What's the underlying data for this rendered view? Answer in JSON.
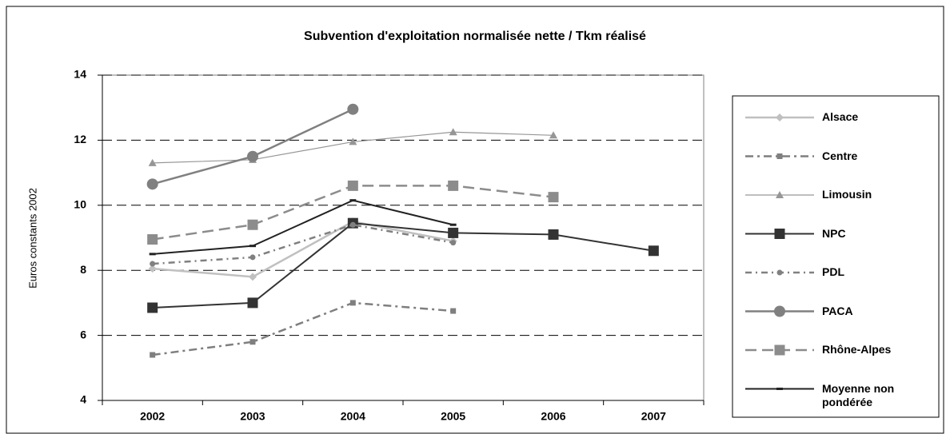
{
  "chart_data": {
    "type": "line",
    "title": "Subvention d'exploitation normalisée nette / Tkm réalisé",
    "y_label": "Euros constants 2002",
    "categories": [
      "2002",
      "2003",
      "2004",
      "2005",
      "2006",
      "2007"
    ],
    "ylim": [
      4,
      14
    ],
    "yticks": [
      4,
      6,
      8,
      10,
      12,
      14
    ],
    "grid": true,
    "series": [
      {
        "name": "Alsace",
        "color": "#c0c0c0",
        "marker": "diamond",
        "dash": "none",
        "width": 2.5,
        "values": [
          8.05,
          7.8,
          9.5,
          8.9,
          null,
          null
        ]
      },
      {
        "name": "Centre",
        "color": "#7f7f7f",
        "marker": "small-square",
        "dash": "10,5,3,5",
        "width": 2.5,
        "values": [
          5.4,
          5.8,
          7.0,
          6.75,
          null,
          null
        ]
      },
      {
        "name": "Limousin",
        "color": "#969696",
        "marker": "triangle",
        "dash": "none",
        "width": 1.2,
        "values": [
          11.3,
          11.4,
          11.95,
          12.25,
          12.15,
          null
        ]
      },
      {
        "name": "NPC",
        "color": "#333333",
        "marker": "square",
        "dash": "none",
        "width": 2,
        "values": [
          6.85,
          7.0,
          9.45,
          9.15,
          9.1,
          8.6
        ]
      },
      {
        "name": "PDL",
        "color": "#808080",
        "marker": "small-circle",
        "dash": "8,5,2,5",
        "width": 2.5,
        "values": [
          8.2,
          8.4,
          9.4,
          8.85,
          null,
          null
        ]
      },
      {
        "name": "PACA",
        "color": "#808080",
        "marker": "circle",
        "dash": "none",
        "width": 2.5,
        "values": [
          10.65,
          11.5,
          12.95,
          null,
          null,
          null
        ]
      },
      {
        "name": "Rhône-Alpes",
        "color": "#8c8c8c",
        "marker": "square",
        "dash": "14,7",
        "width": 2.5,
        "values": [
          8.95,
          9.4,
          10.6,
          10.6,
          10.25,
          null
        ]
      },
      {
        "name": "Moyenne non pondérée",
        "color": "#222222",
        "marker": "dash",
        "dash": "none",
        "width": 2,
        "values": [
          8.5,
          8.75,
          10.15,
          9.4,
          null,
          null
        ]
      }
    ]
  }
}
